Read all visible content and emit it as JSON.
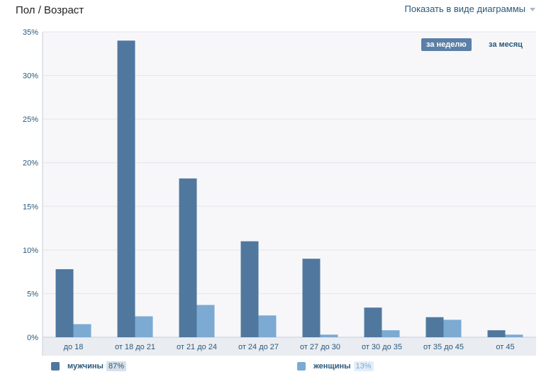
{
  "header": {
    "title": "Пол / Возраст",
    "view_toggle_label": "Показать в виде диаграммы"
  },
  "periods": {
    "week_label": "за неделю",
    "month_label": "за месяц",
    "active": "week"
  },
  "legend": {
    "men_label": "мужчины",
    "men_percent": "87%",
    "women_label": "женщины",
    "women_percent": "13%"
  },
  "colors": {
    "men": "#50789f",
    "women": "#7caad2",
    "plot_bg": "#f7f7f9",
    "grid": "#e3e6ea",
    "axis_text": "#2b587a"
  },
  "chart_data": {
    "type": "bar",
    "categories": [
      "до 18",
      "от 18 до 21",
      "от 21 до 24",
      "от 24 до 27",
      "от 27 до 30",
      "от 30 до 35",
      "от 35 до 45",
      "от 45"
    ],
    "series": [
      {
        "name": "мужчины",
        "values": [
          7.8,
          34.0,
          18.2,
          11.0,
          9.0,
          3.4,
          2.3,
          0.8
        ]
      },
      {
        "name": "женщины",
        "values": [
          1.5,
          2.4,
          3.7,
          2.5,
          0.3,
          0.8,
          2.0,
          0.3
        ]
      }
    ],
    "y_ticks": [
      "0%",
      "5%",
      "10%",
      "15%",
      "20%",
      "25%",
      "30%",
      "35%"
    ],
    "ylim": [
      0,
      35
    ],
    "grid": true,
    "legend_position": "bottom"
  }
}
